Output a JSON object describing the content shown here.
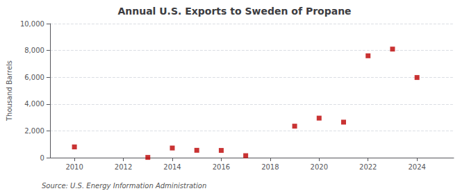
{
  "chart_data": {
    "type": "scatter",
    "title": "Annual U.S. Exports to Sweden of Propane",
    "ylabel": "Thousand Barrels",
    "annotations": [
      "Source: U.S. Energy Information Administration"
    ],
    "x": [
      2010,
      2013,
      2014,
      2015,
      2016,
      2017,
      2019,
      2020,
      2021,
      2022,
      2023,
      2024
    ],
    "values": [
      800,
      20,
      720,
      550,
      540,
      150,
      2350,
      2950,
      2650,
      7600,
      8100,
      5980
    ],
    "color": "#bb0000",
    "marker": "square",
    "xlim": [
      2009,
      2025.5
    ],
    "xticks": [
      2010,
      2012,
      2014,
      2016,
      2018,
      2020,
      2022,
      2024
    ],
    "ylim": [
      0,
      10000
    ],
    "yticks": [
      0,
      {
        "value": 2000,
        "label": "2,000"
      },
      {
        "value": 4000,
        "label": "4,000"
      },
      {
        "value": 6000,
        "label": "6,000"
      },
      {
        "value": 8000,
        "label": "8,000"
      },
      {
        "value": 10000,
        "label": "10,000"
      }
    ],
    "grid": true
  }
}
